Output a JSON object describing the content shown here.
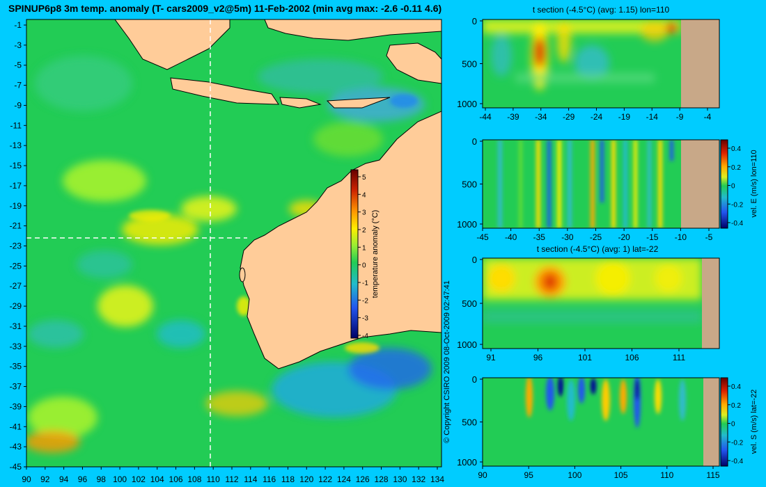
{
  "title": "SPINUP6p8 3m temp. anomaly (T- cars2009_v2@5m) 11-Feb-2002 (min avg max: -2.6 -0.11 4.6)",
  "copyright": "© Copyright CSIRO 2009   08-Oct-2009 02:47:41",
  "map": {
    "lat_ticks": [
      "-1",
      "-3",
      "-5",
      "-7",
      "-9",
      "-11",
      "-13",
      "-15",
      "-17",
      "-19",
      "-21",
      "-23",
      "-25",
      "-27",
      "-29",
      "-31",
      "-33",
      "-35",
      "-37",
      "-39",
      "-41",
      "-43",
      "-45"
    ],
    "lon_ticks": [
      "90",
      "92",
      "94",
      "96",
      "98",
      "100",
      "102",
      "104",
      "106",
      "108",
      "110",
      "112",
      "114",
      "116",
      "118",
      "120",
      "122",
      "124",
      "126",
      "128",
      "130",
      "132",
      "134"
    ],
    "colorbar": {
      "label": "temperature anomaly (°C)",
      "ticks": [
        "5",
        "4",
        "3",
        "2",
        "1",
        "0",
        "-1",
        "-2",
        "-3",
        "-4"
      ]
    }
  },
  "panels": [
    {
      "title": "t section (-4.5°C) (avg: 1.15) lon=110",
      "y_ticks": [
        "0",
        "500",
        "1000"
      ],
      "x_ticks": [
        "-44",
        "-39",
        "-34",
        "-29",
        "-24",
        "-19",
        "-14",
        "-9",
        "-4"
      ]
    },
    {
      "title": "",
      "y_ticks": [
        "0",
        "500",
        "1000"
      ],
      "x_ticks": [
        "-45",
        "-40",
        "-35",
        "-30",
        "-25",
        "-20",
        "-15",
        "-10",
        "-5"
      ],
      "colorbar": {
        "label": "vel. E (m/s) lon=110",
        "ticks": [
          "0.4",
          "0.2",
          "0",
          "-0.2",
          "-0.4"
        ]
      }
    },
    {
      "title": "t section (-4.5°C) (avg: 1) lat=-22",
      "y_ticks": [
        "0",
        "500",
        "1000"
      ],
      "x_ticks": [
        "91",
        "96",
        "101",
        "106",
        "111"
      ]
    },
    {
      "title": "",
      "y_ticks": [
        "0",
        "500",
        "1000"
      ],
      "x_ticks": [
        "90",
        "95",
        "100",
        "105",
        "110",
        "115"
      ],
      "colorbar": {
        "label": "vel. S (m/s) lat=-22",
        "ticks": [
          "0.4",
          "0.2",
          "0",
          "-0.2",
          "-0.4"
        ]
      }
    }
  ],
  "colors": {
    "background": "#00ccff",
    "land": "#ffcc99",
    "section_land": "#c8a888",
    "ocean_base": "#22cc55"
  }
}
